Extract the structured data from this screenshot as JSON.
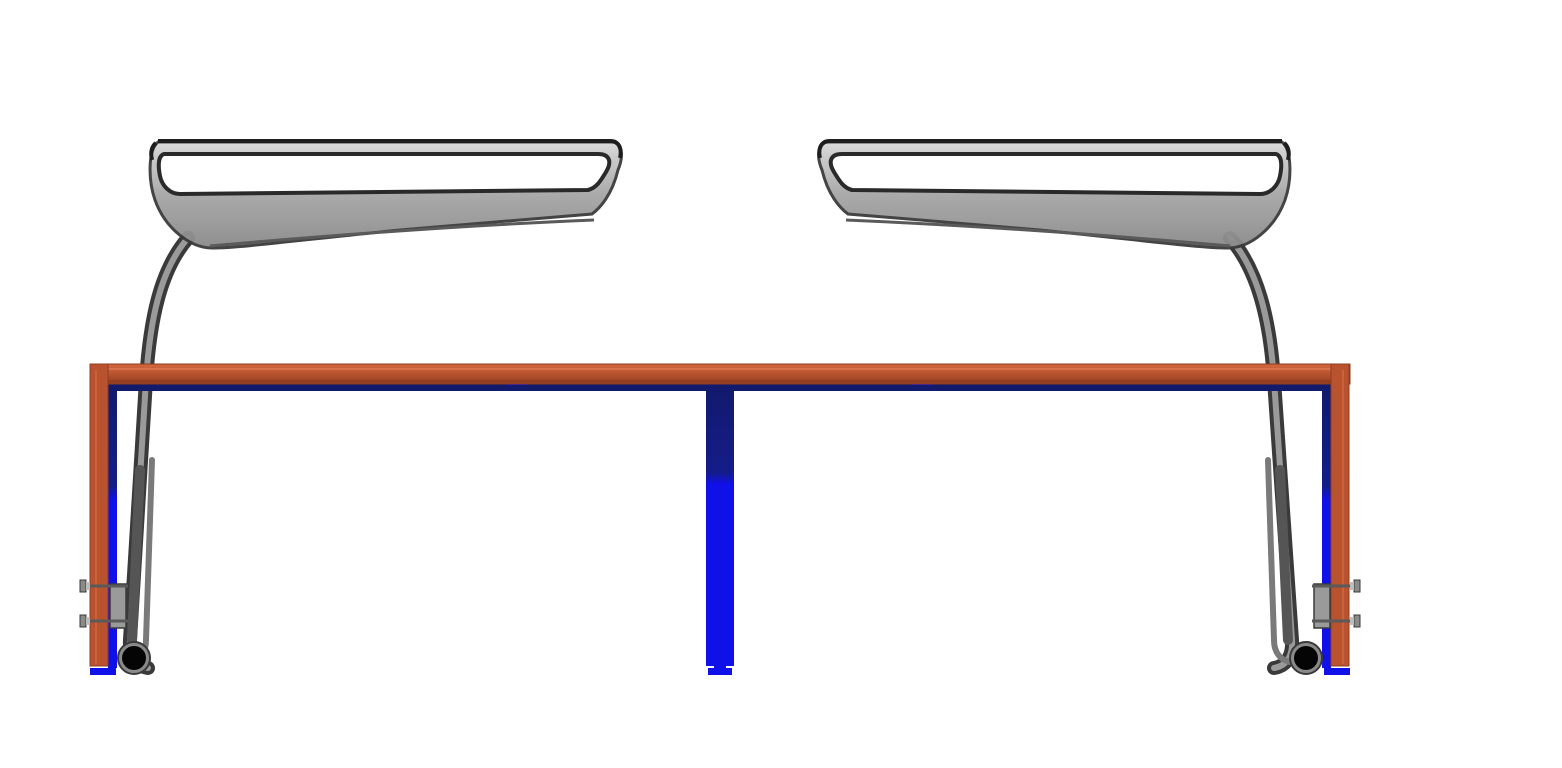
{
  "scene": {
    "description_visible_text": "",
    "colors": {
      "background": "#ffffff",
      "frame_orange": "#b9532f",
      "frame_orange_highlight": "#d2683f",
      "frame_orange_shadow": "#8f3c1f",
      "frame_blue_dark": "#121a6e",
      "frame_blue": "#1010e8",
      "tube_steel": "#7a7a7a",
      "tube_steel_dark": "#3a3a3a",
      "tube_steel_light": "#bdbdbd",
      "hole_black": "#050505"
    },
    "components": [
      {
        "name": "left-handle-loop",
        "kind": "steel-tube-loop"
      },
      {
        "name": "right-handle-loop",
        "kind": "steel-tube-loop"
      },
      {
        "name": "orange-top-frame",
        "kind": "frame"
      },
      {
        "name": "blue-inner-frame",
        "kind": "frame"
      },
      {
        "name": "center-blue-leg",
        "kind": "leg"
      },
      {
        "name": "left-clamp-bracket",
        "kind": "bracket"
      },
      {
        "name": "right-clamp-bracket",
        "kind": "bracket"
      }
    ]
  }
}
